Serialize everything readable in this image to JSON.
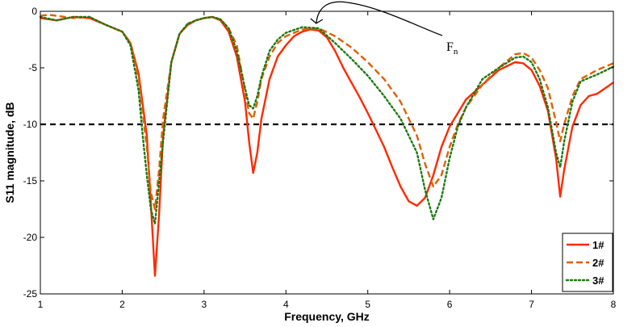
{
  "chart_data": {
    "type": "line",
    "title": "",
    "xlabel": "Frequency, GHz",
    "ylabel": "S11 magnitude, dB",
    "xlim": [
      1,
      8
    ],
    "ylim": [
      -25,
      0
    ],
    "xticks": [
      1,
      2,
      3,
      4,
      5,
      6,
      7,
      8
    ],
    "yticks": [
      0,
      -5,
      -10,
      -15,
      -20,
      -25
    ],
    "grid": false,
    "legend_position": "bottom-right",
    "reference_line": {
      "y": -10,
      "style": "dashed",
      "color": "#000000"
    },
    "annotation": {
      "text": "F",
      "subscript": "n",
      "points_to": {
        "x": 4.4,
        "y": -1.5
      }
    },
    "series": [
      {
        "name": "1#",
        "color": "#ff2a00",
        "style": "solid",
        "x": [
          1.0,
          1.2,
          1.4,
          1.6,
          1.8,
          2.0,
          2.1,
          2.2,
          2.3,
          2.35,
          2.4,
          2.45,
          2.5,
          2.6,
          2.7,
          2.8,
          2.9,
          3.0,
          3.1,
          3.2,
          3.3,
          3.4,
          3.5,
          3.55,
          3.6,
          3.65,
          3.7,
          3.8,
          3.9,
          4.0,
          4.1,
          4.2,
          4.3,
          4.4,
          4.5,
          4.6,
          4.7,
          4.8,
          4.9,
          5.0,
          5.1,
          5.2,
          5.3,
          5.4,
          5.5,
          5.6,
          5.7,
          5.8,
          5.9,
          6.0,
          6.1,
          6.2,
          6.4,
          6.6,
          6.8,
          6.9,
          7.0,
          7.1,
          7.2,
          7.3,
          7.35,
          7.4,
          7.5,
          7.6,
          7.7,
          7.8,
          7.9,
          8.0
        ],
        "y": [
          -0.6,
          -0.8,
          -0.5,
          -0.6,
          -1.2,
          -1.8,
          -2.8,
          -5.5,
          -11.0,
          -17.0,
          -23.4,
          -18.0,
          -11.0,
          -4.5,
          -2.0,
          -1.2,
          -0.8,
          -0.6,
          -0.5,
          -0.8,
          -1.8,
          -4.0,
          -8.0,
          -11.5,
          -14.3,
          -12.5,
          -9.5,
          -6.0,
          -4.0,
          -3.0,
          -2.2,
          -1.8,
          -1.6,
          -1.7,
          -2.3,
          -3.5,
          -5.0,
          -6.3,
          -7.6,
          -9.0,
          -10.5,
          -12.0,
          -13.8,
          -15.5,
          -16.8,
          -17.2,
          -16.5,
          -14.5,
          -12.0,
          -10.2,
          -9.0,
          -7.8,
          -6.5,
          -5.2,
          -4.5,
          -4.6,
          -5.2,
          -6.6,
          -8.8,
          -13.0,
          -16.4,
          -14.0,
          -10.2,
          -8.3,
          -7.5,
          -7.3,
          -6.8,
          -6.3
        ]
      },
      {
        "name": "2#",
        "color": "#e06000",
        "style": "dashed",
        "x": [
          1.0,
          1.1,
          1.2,
          1.4,
          1.6,
          1.8,
          2.0,
          2.1,
          2.2,
          2.3,
          2.35,
          2.4,
          2.45,
          2.5,
          2.6,
          2.7,
          2.8,
          2.9,
          3.0,
          3.1,
          3.2,
          3.3,
          3.4,
          3.5,
          3.55,
          3.6,
          3.65,
          3.7,
          3.8,
          3.9,
          4.0,
          4.2,
          4.4,
          4.6,
          4.8,
          5.0,
          5.2,
          5.4,
          5.6,
          5.7,
          5.8,
          5.9,
          6.0,
          6.1,
          6.2,
          6.4,
          6.6,
          6.8,
          6.9,
          7.0,
          7.1,
          7.2,
          7.3,
          7.35,
          7.4,
          7.5,
          7.6,
          7.8,
          8.0
        ],
        "y": [
          -0.4,
          -0.3,
          -0.4,
          -0.6,
          -0.5,
          -1.2,
          -1.8,
          -2.8,
          -6.0,
          -12.0,
          -16.0,
          -17.5,
          -14.0,
          -9.5,
          -4.5,
          -2.0,
          -1.1,
          -0.8,
          -0.6,
          -0.5,
          -0.7,
          -1.5,
          -3.0,
          -7.0,
          -9.0,
          -9.5,
          -8.0,
          -6.0,
          -4.0,
          -2.8,
          -2.2,
          -1.6,
          -1.5,
          -2.2,
          -3.2,
          -4.5,
          -6.0,
          -8.0,
          -11.0,
          -13.5,
          -15.5,
          -14.5,
          -12.0,
          -10.0,
          -8.5,
          -6.5,
          -5.0,
          -3.8,
          -3.7,
          -4.1,
          -5.2,
          -6.8,
          -9.8,
          -11.5,
          -10.0,
          -7.5,
          -6.0,
          -5.2,
          -4.6
        ]
      },
      {
        "name": "3#",
        "color": "#1a7a10",
        "style": "dotted",
        "x": [
          1.0,
          1.2,
          1.4,
          1.6,
          1.8,
          2.0,
          2.1,
          2.2,
          2.25,
          2.3,
          2.35,
          2.4,
          2.5,
          2.6,
          2.7,
          2.8,
          2.9,
          3.0,
          3.1,
          3.2,
          3.3,
          3.4,
          3.5,
          3.55,
          3.6,
          3.65,
          3.7,
          3.8,
          3.9,
          4.0,
          4.2,
          4.4,
          4.6,
          4.8,
          5.0,
          5.2,
          5.4,
          5.6,
          5.7,
          5.8,
          5.9,
          6.0,
          6.1,
          6.2,
          6.4,
          6.6,
          6.8,
          6.9,
          7.0,
          7.1,
          7.2,
          7.3,
          7.35,
          7.4,
          7.5,
          7.6,
          7.8,
          8.0
        ],
        "y": [
          -0.5,
          -0.8,
          -0.5,
          -0.5,
          -1.2,
          -1.8,
          -3.0,
          -7.0,
          -11.0,
          -14.5,
          -17.5,
          -18.8,
          -11.5,
          -4.5,
          -2.0,
          -1.1,
          -0.8,
          -0.6,
          -0.5,
          -0.7,
          -1.5,
          -3.5,
          -6.8,
          -8.3,
          -8.6,
          -7.5,
          -5.8,
          -3.5,
          -2.5,
          -1.9,
          -1.4,
          -1.5,
          -2.8,
          -4.2,
          -5.7,
          -7.5,
          -9.5,
          -12.5,
          -15.8,
          -18.4,
          -16.5,
          -13.0,
          -10.2,
          -8.5,
          -6.0,
          -5.0,
          -4.1,
          -4.0,
          -4.5,
          -6.0,
          -8.5,
          -12.5,
          -13.8,
          -11.5,
          -8.0,
          -6.2,
          -5.6,
          -4.9
        ]
      }
    ]
  }
}
